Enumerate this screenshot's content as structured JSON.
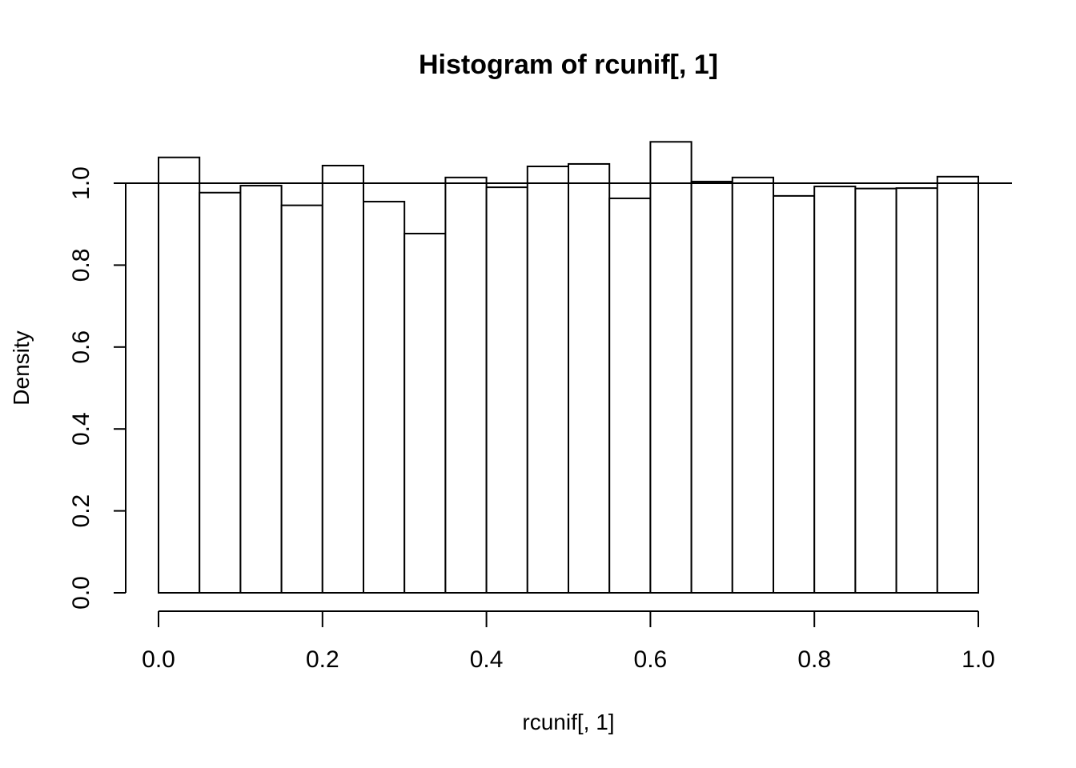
{
  "chart_data": {
    "type": "bar",
    "title": "Histogram of rcunif[, 1]",
    "xlabel": "rcunif[, 1]",
    "ylabel": "Density",
    "xlim": [
      0,
      1
    ],
    "ylim": [
      0,
      1.1
    ],
    "x_ticks": [
      "0.0",
      "0.2",
      "0.4",
      "0.6",
      "0.8",
      "1.0"
    ],
    "y_ticks": [
      "0.0",
      "0.2",
      "0.4",
      "0.6",
      "0.8",
      "1.0"
    ],
    "bin_width": 0.05,
    "bins": [
      {
        "start": 0.0,
        "end": 0.05,
        "density": 1.063
      },
      {
        "start": 0.05,
        "end": 0.1,
        "density": 0.977
      },
      {
        "start": 0.1,
        "end": 0.15,
        "density": 0.994
      },
      {
        "start": 0.15,
        "end": 0.2,
        "density": 0.946
      },
      {
        "start": 0.2,
        "end": 0.25,
        "density": 1.043
      },
      {
        "start": 0.25,
        "end": 0.3,
        "density": 0.955
      },
      {
        "start": 0.3,
        "end": 0.35,
        "density": 0.877
      },
      {
        "start": 0.35,
        "end": 0.4,
        "density": 1.014
      },
      {
        "start": 0.4,
        "end": 0.45,
        "density": 0.99
      },
      {
        "start": 0.45,
        "end": 0.5,
        "density": 1.041
      },
      {
        "start": 0.5,
        "end": 0.55,
        "density": 1.047
      },
      {
        "start": 0.55,
        "end": 0.6,
        "density": 0.963
      },
      {
        "start": 0.6,
        "end": 0.65,
        "density": 1.101
      },
      {
        "start": 0.65,
        "end": 0.7,
        "density": 1.004
      },
      {
        "start": 0.7,
        "end": 0.75,
        "density": 1.014
      },
      {
        "start": 0.75,
        "end": 0.8,
        "density": 0.969
      },
      {
        "start": 0.8,
        "end": 0.85,
        "density": 0.992
      },
      {
        "start": 0.85,
        "end": 0.9,
        "density": 0.987
      },
      {
        "start": 0.9,
        "end": 0.95,
        "density": 0.988
      },
      {
        "start": 0.95,
        "end": 1.0,
        "density": 1.016
      }
    ],
    "reference_line": {
      "orientation": "horizontal",
      "y": 1.0
    },
    "grid": false,
    "legend": "none",
    "colors": {
      "bar_fill": "#ffffff",
      "bar_stroke": "#000000",
      "background": "#ffffff"
    }
  }
}
